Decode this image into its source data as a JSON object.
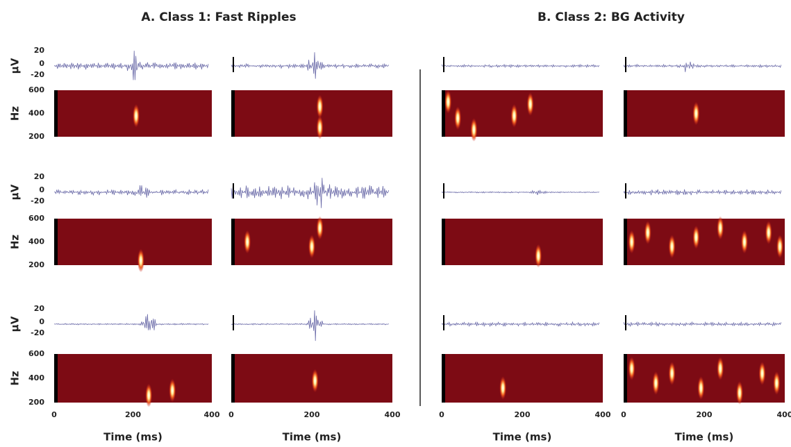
{
  "titles": [
    "A. Class 1: Fast Ripples",
    "B. Class 2: BG Activity"
  ],
  "rows": [
    {
      "signal_axis": {
        "label": "µV",
        "ticks": [
          "20",
          "0",
          "-20"
        ]
      },
      "spectrogram_axis": {
        "label": "Hz",
        "ticks": [
          "600",
          "400",
          "200"
        ]
      }
    },
    {
      "signal_axis": {
        "label": "µV",
        "ticks": [
          "20",
          "0",
          "-20"
        ]
      },
      "spectrogram_axis": {
        "label": "Hz",
        "ticks": [
          "600",
          "400",
          "200"
        ]
      }
    },
    {
      "signal_axis": {
        "label": "µV",
        "ticks": [
          "20",
          "0",
          "-20"
        ]
      },
      "spectrogram_axis": {
        "label": "Hz",
        "ticks": [
          "600",
          "400",
          "200"
        ]
      }
    }
  ],
  "columns": [
    {
      "x_ticks": [
        "0",
        "200",
        "400"
      ],
      "x_label": "Time (ms)"
    },
    {
      "x_ticks": [
        "0",
        "200",
        "400"
      ],
      "x_label": "Time (ms)"
    },
    {
      "x_ticks": [
        "0",
        "200",
        "400"
      ],
      "x_label": "Time (ms)"
    },
    {
      "x_ticks": [
        "0",
        "200",
        "400"
      ],
      "x_label": "Time (ms)"
    }
  ]
}
